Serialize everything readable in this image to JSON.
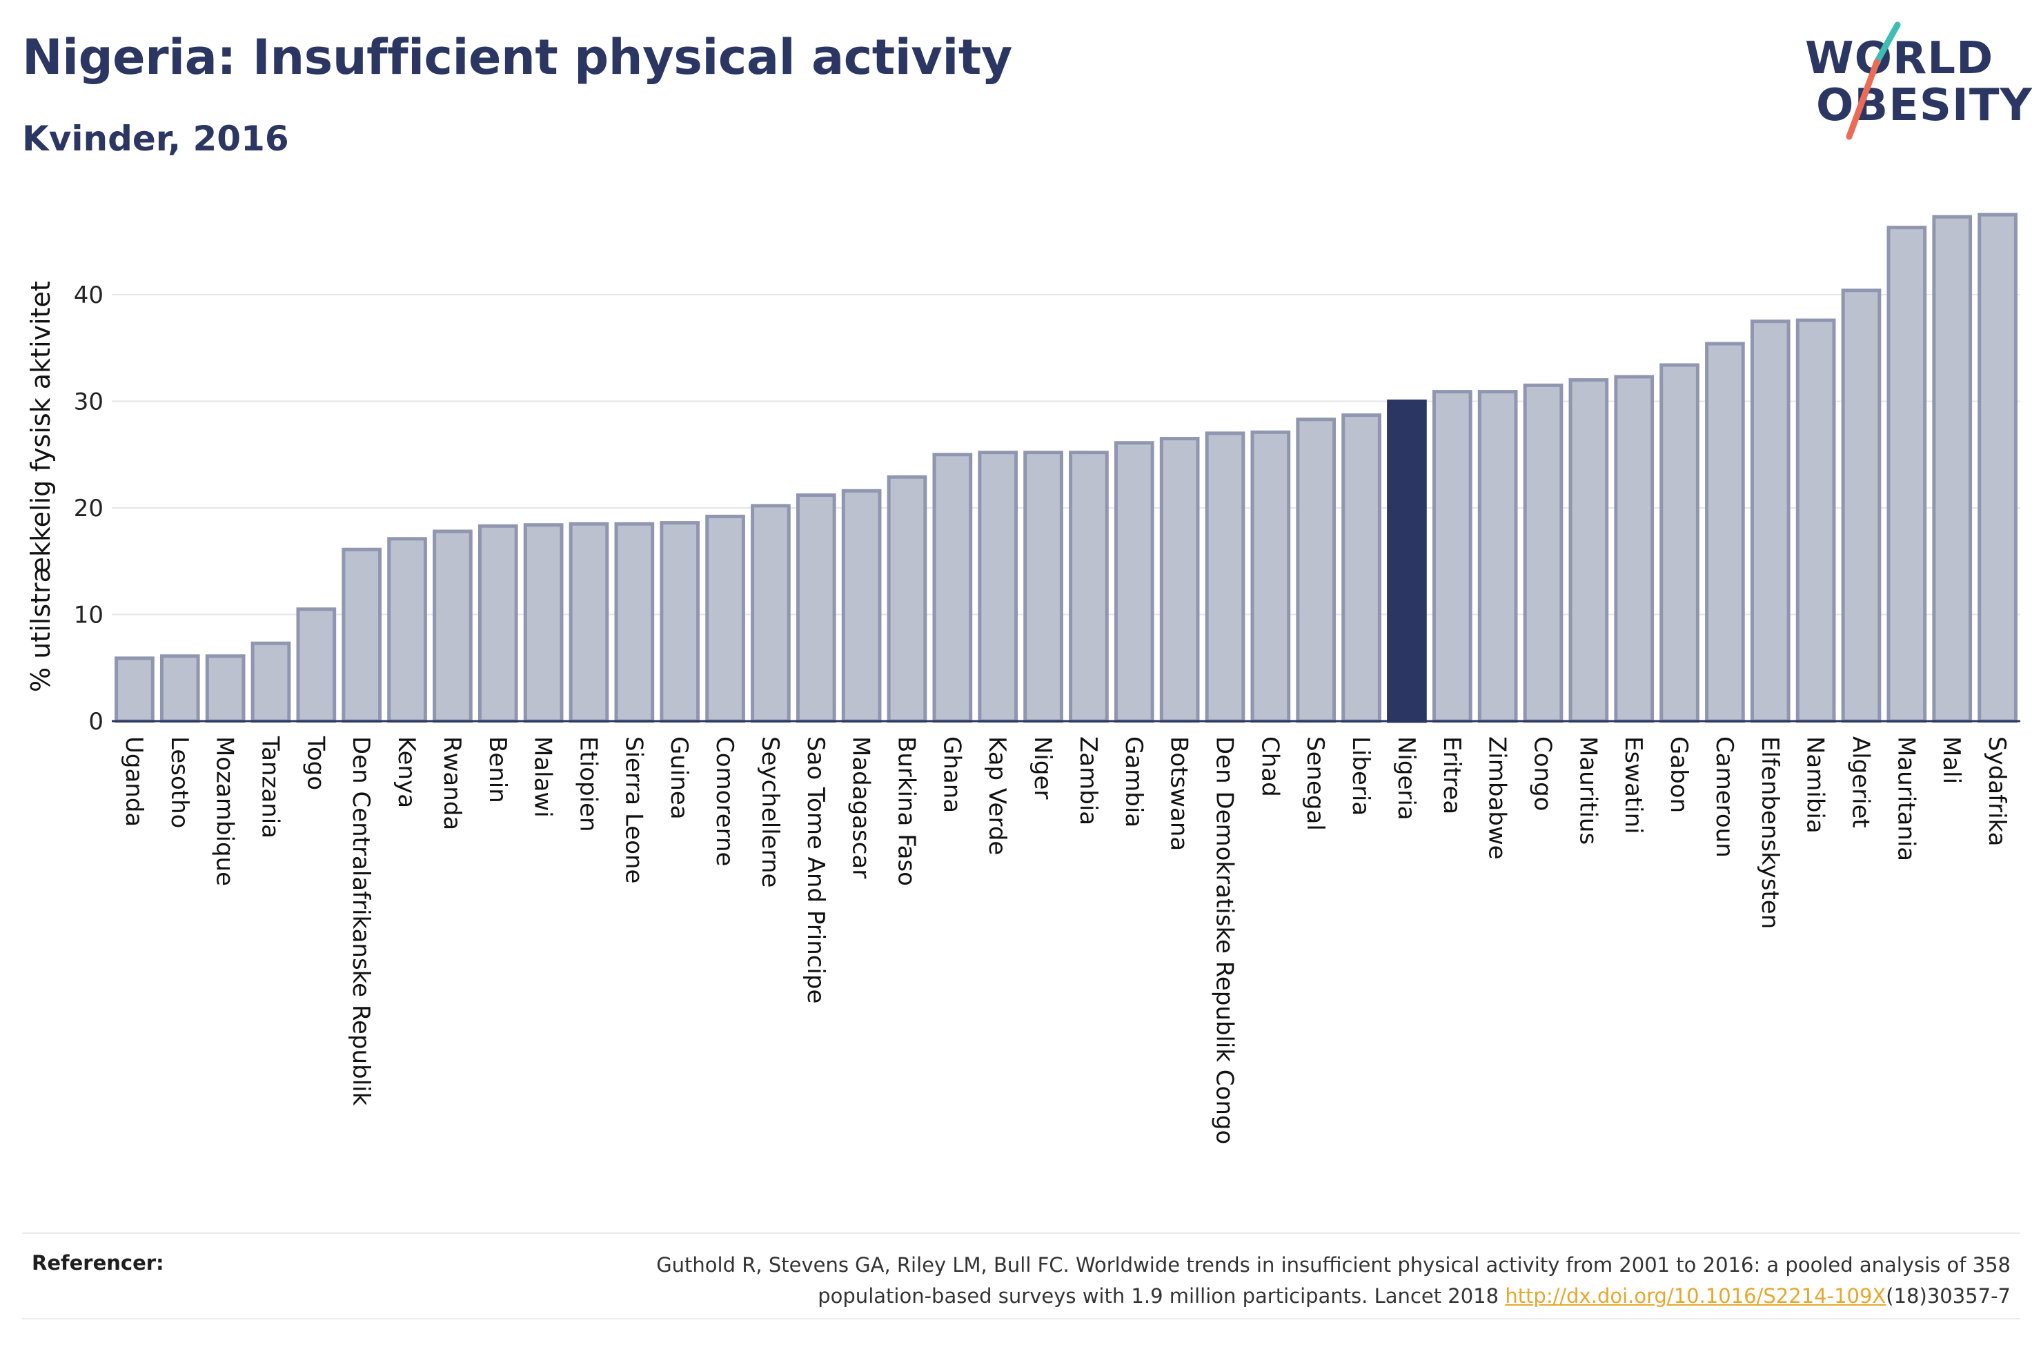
{
  "header": {
    "title": "Nigeria: Insufficient physical activity",
    "subtitle": "Kvinder, 2016"
  },
  "logo": {
    "line1": "WORLD",
    "line2": "OBESITY",
    "colors": {
      "text": "#2b3762",
      "slash_teal": "#3dbdb3",
      "slash_coral": "#ec6b57"
    }
  },
  "colors": {
    "bar_fill": "#bcc1d0",
    "bar_stroke": "#9096b0",
    "highlight": "#2b3762",
    "gridline": "#e6e6e6",
    "axis": "#2b3762"
  },
  "chart_data": {
    "type": "bar",
    "title": "Nigeria: Insufficient physical activity",
    "subtitle": "Kvinder, 2016",
    "xlabel": "",
    "ylabel": "% utilstrækkelig fysisk aktivitet",
    "ylim": [
      0,
      48
    ],
    "yticks": [
      0,
      10,
      20,
      30,
      40
    ],
    "grid": true,
    "highlight": "Nigeria",
    "categories": [
      "Uganda",
      "Lesotho",
      "Mozambique",
      "Tanzania",
      "Togo",
      "Den Centralafrikanske Republik",
      "Kenya",
      "Rwanda",
      "Benin",
      "Malawi",
      "Etiopien",
      "Sierra Leone",
      "Guinea",
      "Comorerne",
      "Seychellerne",
      "Sao Tome And Principe",
      "Madagascar",
      "Burkina Faso",
      "Ghana",
      "Kap Verde",
      "Niger",
      "Zambia",
      "Gambia",
      "Botswana",
      "Den Demokratiske Republik Congo",
      "Chad",
      "Senegal",
      "Liberia",
      "Nigeria",
      "Eritrea",
      "Zimbabwe",
      "Congo",
      "Mauritius",
      "Eswatini",
      "Gabon",
      "Cameroun",
      "Elfenbenskysten",
      "Namibia",
      "Algeriet",
      "Mauritania",
      "Mali",
      "Sydafrika"
    ],
    "values": [
      5.9,
      6.1,
      6.1,
      7.3,
      10.5,
      16.1,
      17.1,
      17.8,
      18.3,
      18.4,
      18.5,
      18.5,
      18.6,
      19.2,
      20.2,
      21.2,
      21.6,
      22.9,
      25.0,
      25.2,
      25.2,
      25.2,
      26.1,
      26.5,
      27.0,
      27.1,
      28.3,
      28.7,
      30.0,
      30.9,
      30.9,
      31.5,
      32.0,
      32.3,
      33.4,
      35.4,
      37.5,
      37.6,
      40.4,
      46.3,
      47.3,
      47.5
    ]
  },
  "references": {
    "label": "Referencer:",
    "line1": "Guthold R, Stevens GA, Riley LM, Bull FC. Worldwide trends in insufficient physical activity from 2001 to 2016: a pooled analysis of 358",
    "line2_before": "population-based surveys with 1.9 million participants. Lancet 2018 ",
    "link": "http://dx.doi.org/10.1016/S2214-109X",
    "line2_after": "(18)30357-7"
  }
}
